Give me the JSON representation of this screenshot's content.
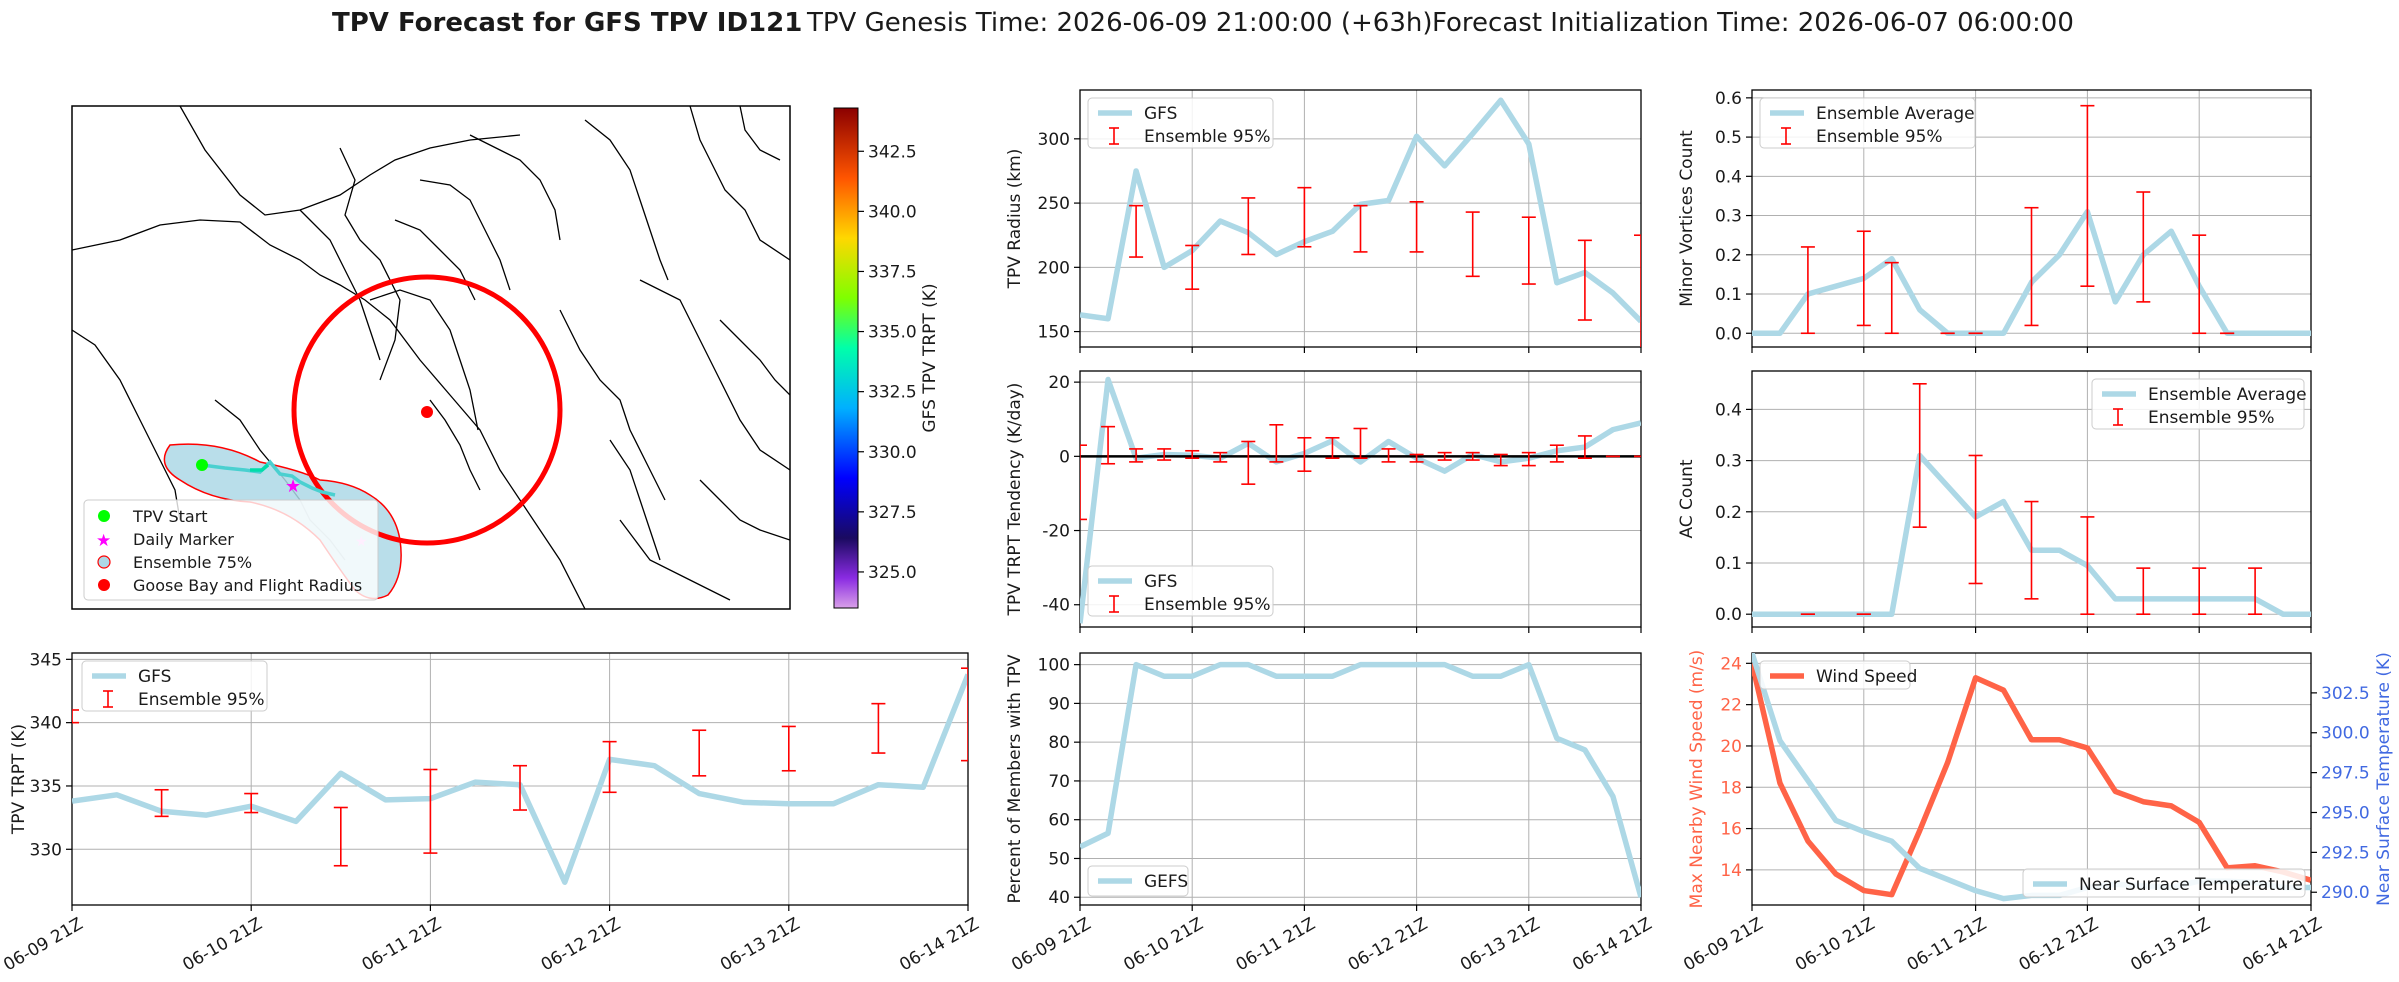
{
  "header": {
    "title_bold": "TPV Forecast for GFS TPV ID121",
    "genesis": "TPV Genesis Time: 2026-06-09 21:00:00 (+63h)",
    "init": "Forecast Initialization Time: 2026-06-07 06:00:00"
  },
  "colors": {
    "gfs_line": "#add8e6",
    "errorbar": "#ff0000",
    "wind": "#ff6347",
    "temp_axis": "#4169e1",
    "ensemble_fill": "#add8e6",
    "ensemble_edge": "#ff0000",
    "flight_radius": "#ff0000",
    "start_marker": "#00ff00",
    "daily_marker": "#ff00ff"
  },
  "x_tick_labels": [
    "06-09 21Z",
    "06-10 21Z",
    "06-11 21Z",
    "06-12 21Z",
    "06-13 21Z",
    "06-14 21Z"
  ],
  "map": {
    "colorbar": {
      "label": "GFS TPV TRPT (K)",
      "range": [
        323.5,
        344.3
      ],
      "ticks": [
        325.0,
        327.5,
        330.0,
        332.5,
        335.0,
        337.5,
        340.0,
        342.5
      ],
      "tick_labels": [
        "325.0",
        "327.5",
        "330.0",
        "332.5",
        "335.0",
        "337.5",
        "340.0",
        "342.5"
      ]
    },
    "legend": [
      {
        "label": "TPV Start",
        "icon": "green-dot-icon"
      },
      {
        "label": "Daily Marker",
        "icon": "magenta-star-icon"
      },
      {
        "label": "Ensemble 75%",
        "icon": "ensemble-patch-icon"
      },
      {
        "label": "Goose Bay and Flight Radius",
        "icon": "red-dot-icon"
      }
    ]
  },
  "chart_data": [
    {
      "id": "radius",
      "type": "line",
      "xlabel": "",
      "ylabel": "TPV Radius (km)",
      "ylim": [
        138,
        338
      ],
      "yticks": [
        150,
        200,
        250,
        300
      ],
      "tick_labels_x_shown": false,
      "legend_placement": "upper-left",
      "series": [
        {
          "name": "GFS",
          "type": "line",
          "color": "#add8e6",
          "x": [
            0,
            1,
            2,
            3,
            4,
            5,
            6,
            7,
            8,
            9,
            10,
            11,
            12,
            13,
            14,
            15,
            16,
            17,
            18,
            19,
            20
          ],
          "values": [
            163,
            160,
            275,
            200,
            213,
            236,
            227,
            210,
            220,
            228,
            249,
            252,
            302,
            279,
            304,
            330,
            296,
            188,
            196,
            180,
            158
          ]
        },
        {
          "name": "Ensemble 95%",
          "type": "errorbar",
          "color": "#ff0000",
          "x": [
            2,
            4,
            6,
            8,
            10,
            12,
            14,
            16,
            18,
            20
          ],
          "low": [
            208,
            183,
            210,
            216,
            212,
            212,
            193,
            187,
            159,
            135
          ],
          "high": [
            248,
            217,
            254,
            262,
            248,
            251,
            243,
            239,
            221,
            225
          ]
        }
      ]
    },
    {
      "id": "tendency",
      "type": "line",
      "xlabel": "",
      "ylabel": "TPV TRPT Tendency (K/day)",
      "ylim": [
        -46,
        23
      ],
      "yticks": [
        -40,
        -20,
        0,
        20
      ],
      "tick_labels_x_shown": false,
      "legend_placement": "lower-left",
      "series": [
        {
          "name": "GFS",
          "type": "line",
          "color": "#add8e6",
          "x": [
            0,
            1,
            2,
            3,
            4,
            5,
            6,
            7,
            8,
            9,
            10,
            11,
            12,
            13,
            14,
            15,
            16,
            17,
            18,
            19,
            20
          ],
          "values": [
            -45,
            20.7,
            -0.5,
            0.5,
            0.3,
            -0.5,
            3.5,
            -1.5,
            0.8,
            4.2,
            -1.5,
            4,
            -0.5,
            -4,
            0.5,
            -1.5,
            -0.5,
            1.5,
            2.5,
            7.2,
            9
          ]
        },
        {
          "name": "Ensemble 95%",
          "type": "errorbar",
          "color": "#ff0000",
          "x": [
            0,
            1,
            2,
            3,
            4,
            5,
            6,
            7,
            8,
            9,
            10,
            11,
            12,
            13,
            14,
            15,
            16,
            17,
            18,
            19,
            20
          ],
          "low": [
            -17,
            -2,
            -1.5,
            -1,
            -0.5,
            -1.5,
            -7.5,
            -1.5,
            -4,
            -0.5,
            -0.5,
            -1.5,
            -1.5,
            -1,
            -1,
            -2.5,
            -2.5,
            -1.5,
            -0.5,
            0,
            0
          ],
          "high": [
            3,
            8,
            2,
            2,
            1.5,
            1,
            4,
            8.5,
            5,
            5,
            7.5,
            2,
            0.5,
            1,
            1,
            0.5,
            1,
            3,
            5.5,
            0,
            0
          ]
        },
        {
          "name": "zero line",
          "type": "hline",
          "color": "#000000",
          "value": 0
        }
      ]
    },
    {
      "id": "percent",
      "type": "line",
      "xlabel": "",
      "ylabel": "Percent of Members with TPV",
      "ylim": [
        38,
        103
      ],
      "yticks": [
        40,
        50,
        60,
        70,
        80,
        90,
        100
      ],
      "tick_labels_x_shown": true,
      "legend_placement": "lower-left",
      "series": [
        {
          "name": "GEFS",
          "type": "line",
          "color": "#add8e6",
          "x": [
            0,
            1,
            2,
            3,
            4,
            5,
            6,
            7,
            8,
            9,
            10,
            11,
            12,
            13,
            14,
            15,
            16,
            17,
            18,
            19,
            20
          ],
          "values": [
            53,
            56.5,
            100,
            97,
            97,
            100,
            100,
            97,
            97,
            97,
            100,
            100,
            100,
            100,
            97,
            97,
            100,
            81,
            78,
            66,
            40
          ]
        }
      ]
    },
    {
      "id": "minor",
      "type": "line",
      "xlabel": "",
      "ylabel": "Minor Vortices Count",
      "ylim": [
        -0.035,
        0.62
      ],
      "yticks": [
        0.0,
        0.1,
        0.2,
        0.3,
        0.4,
        0.5,
        0.6
      ],
      "ytick_labels": [
        "0.0",
        "0.1",
        "0.2",
        "0.3",
        "0.4",
        "0.5",
        "0.6"
      ],
      "tick_labels_x_shown": false,
      "legend_placement": "upper-left",
      "series": [
        {
          "name": "Ensemble Average",
          "type": "line",
          "color": "#add8e6",
          "x": [
            0,
            1,
            2,
            3,
            4,
            5,
            6,
            7,
            8,
            9,
            10,
            11,
            12,
            13,
            14,
            15,
            16,
            17,
            18,
            19,
            20
          ],
          "values": [
            0,
            0,
            0.1,
            0.12,
            0.14,
            0.19,
            0.06,
            0,
            0,
            0,
            0.13,
            0.2,
            0.31,
            0.08,
            0.2,
            0.26,
            0.12,
            0,
            0,
            0,
            0
          ]
        },
        {
          "name": "Ensemble 95%",
          "type": "errorbar",
          "color": "#ff0000",
          "x": [
            2,
            4,
            5,
            7,
            8,
            10,
            12,
            14,
            16,
            17
          ],
          "low": [
            0,
            0.02,
            0,
            0,
            0,
            0.02,
            0.12,
            0.08,
            0,
            0
          ],
          "high": [
            0.22,
            0.26,
            0.18,
            0,
            0,
            0.32,
            0.58,
            0.36,
            0.25,
            0
          ]
        }
      ]
    },
    {
      "id": "ac",
      "type": "line",
      "xlabel": "",
      "ylabel": "AC Count",
      "ylim": [
        -0.025,
        0.475
      ],
      "yticks": [
        0.0,
        0.1,
        0.2,
        0.3,
        0.4
      ],
      "ytick_labels": [
        "0.0",
        "0.1",
        "0.2",
        "0.3",
        "0.4"
      ],
      "tick_labels_x_shown": false,
      "legend_placement": "upper-right",
      "series": [
        {
          "name": "Ensemble Average",
          "type": "line",
          "color": "#add8e6",
          "x": [
            0,
            1,
            2,
            3,
            4,
            5,
            6,
            7,
            8,
            9,
            10,
            11,
            12,
            13,
            14,
            15,
            16,
            17,
            18,
            19,
            20
          ],
          "values": [
            0,
            0,
            0,
            0,
            0,
            0,
            0.31,
            0.25,
            0.19,
            0.22,
            0.125,
            0.125,
            0.095,
            0.03,
            0.03,
            0.03,
            0.03,
            0.03,
            0.03,
            0,
            0
          ]
        },
        {
          "name": "Ensemble 95%",
          "type": "errorbar",
          "color": "#ff0000",
          "x": [
            2,
            4,
            6,
            8,
            10,
            12,
            14,
            16,
            18
          ],
          "low": [
            0,
            0,
            0.17,
            0.06,
            0.03,
            0,
            0,
            0,
            0
          ],
          "high": [
            0,
            0,
            0.45,
            0.31,
            0.22,
            0.19,
            0.09,
            0.09,
            0.09
          ]
        }
      ]
    },
    {
      "id": "wind",
      "type": "line",
      "xlabel": "",
      "ylabel": "Max Nearby Wind Speed (m/s)",
      "ylabel_right": "Near Surface Temperature (K)",
      "ylim": [
        12.3,
        24.5
      ],
      "yticks": [
        14,
        16,
        18,
        20,
        22,
        24
      ],
      "ylim_right": [
        289.2,
        305
      ],
      "yticks_right": [
        290.0,
        292.5,
        295.0,
        297.5,
        300.0,
        302.5
      ],
      "ytick_labels_right": [
        "290.0",
        "292.5",
        "295.0",
        "297.5",
        "300.0",
        "302.5"
      ],
      "tick_labels_x_shown": true,
      "legend_placement": "upper-left / lower-right",
      "series": [
        {
          "name": "Wind Speed",
          "type": "line",
          "axis": "left",
          "color": "#ff6347",
          "x": [
            0,
            1,
            2,
            3,
            4,
            5,
            6,
            7,
            8,
            9,
            10,
            11,
            12,
            13,
            14,
            15,
            16,
            17,
            18,
            19,
            20
          ],
          "values": [
            24,
            18.2,
            15.4,
            13.8,
            13,
            12.8,
            15.9,
            19.2,
            23.3,
            22.7,
            20.3,
            20.3,
            19.9,
            17.8,
            17.3,
            17.1,
            16.3,
            14.1,
            14.2,
            13.9,
            13.5
          ]
        },
        {
          "name": "Near Surface Temperature",
          "type": "line",
          "axis": "right",
          "color": "#add8e6",
          "x": [
            0,
            1,
            2,
            3,
            4,
            5,
            6,
            7,
            8,
            9,
            10,
            11,
            12,
            13,
            14,
            15,
            16,
            17,
            18,
            19,
            20
          ],
          "values": [
            305,
            299.5,
            297,
            294.5,
            293.8,
            293.2,
            291.5,
            290.8,
            290.1,
            289.6,
            289.8,
            289.8,
            290.3,
            290.5,
            290.4,
            290.3,
            290.7,
            290.7,
            290.6,
            290.3,
            290.3
          ]
        }
      ]
    },
    {
      "id": "trpt",
      "type": "line",
      "xlabel": "",
      "ylabel": "TPV TRPT (K)",
      "ylim": [
        325.6,
        345.5
      ],
      "yticks": [
        330,
        335,
        340,
        345
      ],
      "tick_labels_x_shown": true,
      "legend_placement": "upper-left",
      "series": [
        {
          "name": "GFS",
          "type": "line",
          "color": "#add8e6",
          "x": [
            0,
            1,
            2,
            3,
            4,
            5,
            6,
            7,
            8,
            9,
            10,
            11,
            12,
            13,
            14,
            15,
            16,
            17,
            18,
            19,
            20
          ],
          "values": [
            333.8,
            334.3,
            333.0,
            332.7,
            333.4,
            332.2,
            336.0,
            333.9,
            334.0,
            335.3,
            335.1,
            327.4,
            337.1,
            336.6,
            334.4,
            333.7,
            333.6,
            333.6,
            335.1,
            334.9,
            343.8
          ]
        },
        {
          "name": "Ensemble 95%",
          "type": "errorbar",
          "color": "#ff0000",
          "x": [
            0,
            2,
            4,
            6,
            8,
            10,
            12,
            14,
            16,
            18,
            20
          ],
          "low": [
            340,
            332.6,
            332.9,
            328.7,
            329.7,
            333.1,
            334.5,
            335.8,
            336.2,
            337.6,
            337
          ],
          "high": [
            341,
            334.7,
            334.4,
            333.3,
            336.3,
            336.6,
            338.5,
            339.4,
            339.7,
            341.5,
            344.3
          ]
        }
      ]
    }
  ]
}
